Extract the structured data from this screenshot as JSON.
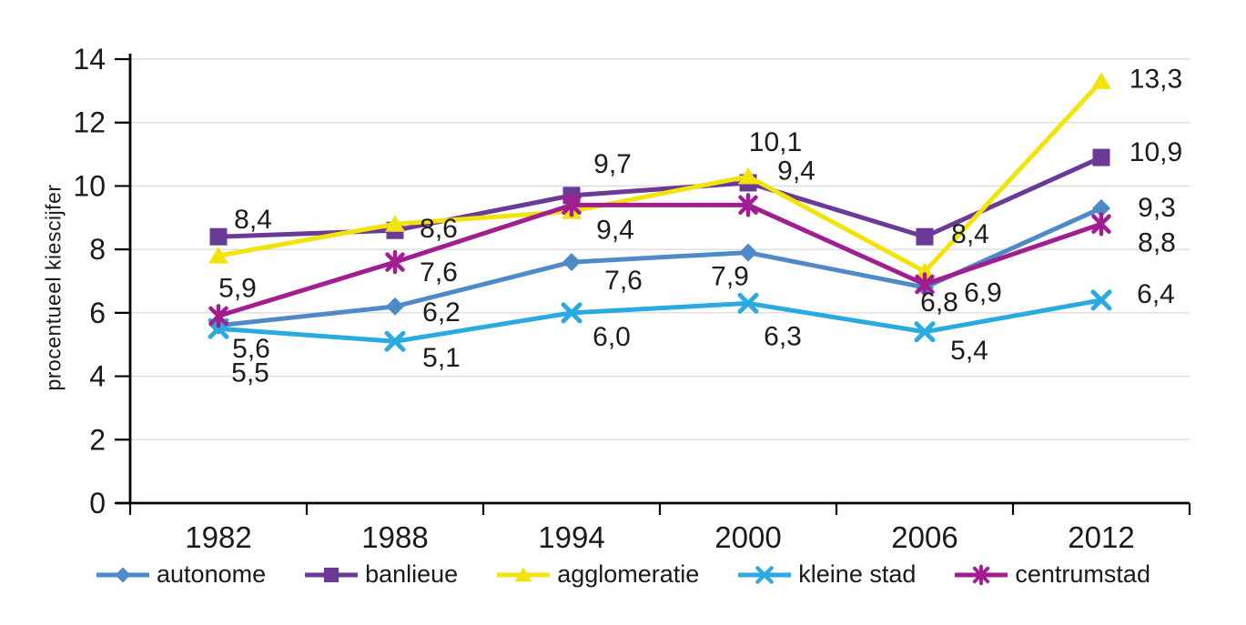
{
  "chart_data": {
    "type": "line",
    "title": "",
    "xlabel": "",
    "ylabel": "procentueel kiescijfer",
    "ylim": [
      0,
      14
    ],
    "yticks": [
      0,
      2,
      4,
      6,
      8,
      10,
      12,
      14
    ],
    "grid": "horizontal",
    "legend_position": "bottom",
    "gridline_color": "#dcdcdc",
    "axis_color": "#000000",
    "label_color": "#1c1c1c",
    "categories": [
      "1982",
      "1988",
      "1994",
      "2000",
      "2006",
      "2012"
    ],
    "series": [
      {
        "name": "autonome",
        "color": "#4e8ac8",
        "marker": "diamond",
        "values": [
          5.6,
          6.2,
          7.6,
          7.9,
          6.8,
          9.3
        ],
        "labels": [
          "5,6",
          "6,2",
          "7,6",
          "7,9",
          "6,8",
          "9,3"
        ],
        "label_offsets": [
          [
            36,
            25
          ],
          [
            51,
            6
          ],
          [
            57,
            20
          ],
          [
            -20,
            26
          ],
          [
            16,
            16
          ],
          [
            61,
            -1
          ]
        ]
      },
      {
        "name": "banlieue",
        "color": "#6b3a96",
        "marker": "square",
        "values": [
          8.4,
          8.6,
          9.7,
          10.1,
          8.4,
          10.9
        ],
        "labels": [
          "8,4",
          "8,6",
          "9,7",
          "10,1",
          "8,4",
          "10,9"
        ],
        "label_offsets": [
          [
            38,
            -19
          ],
          [
            48,
            -2
          ],
          [
            45,
            -35
          ],
          [
            30,
            -45
          ],
          [
            50,
            -3
          ],
          [
            60,
            -6
          ]
        ]
      },
      {
        "name": "agglomeratie",
        "color": "#f2e30b",
        "marker": "triangle",
        "values": [
          7.8,
          8.8,
          9.2,
          10.3,
          7.3,
          13.3
        ],
        "labels": [
          null,
          null,
          null,
          null,
          null,
          "13,3"
        ],
        "label_offsets": [
          null,
          null,
          null,
          null,
          null,
          [
            60,
            -3
          ]
        ]
      },
      {
        "name": "kleine stad",
        "color": "#29aae1",
        "marker": "x",
        "values": [
          5.5,
          5.1,
          6.0,
          6.3,
          5.4,
          6.4
        ],
        "labels": [
          "5,5",
          "5,1",
          "6,0",
          "6,3",
          "5,4",
          "6,4"
        ],
        "label_offsets": [
          [
            35,
            48
          ],
          [
            51,
            18
          ],
          [
            44,
            26
          ],
          [
            38,
            36
          ],
          [
            49,
            20
          ],
          [
            60,
            -7
          ]
        ]
      },
      {
        "name": "centrumstad",
        "color": "#a21e90",
        "marker": "asterisk",
        "values": [
          5.9,
          7.6,
          9.4,
          9.4,
          6.9,
          8.8
        ],
        "labels": [
          "5,9",
          "7,6",
          "9,4",
          "9,4",
          "6,9",
          "8,8"
        ],
        "label_offsets": [
          [
            21,
            -31
          ],
          [
            48,
            11
          ],
          [
            48,
            27
          ],
          [
            53,
            -38
          ],
          [
            64,
            9
          ],
          [
            61,
            20
          ]
        ]
      }
    ]
  }
}
